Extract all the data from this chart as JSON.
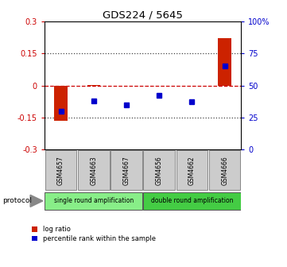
{
  "title": "GDS224 / 5645",
  "samples": [
    "GSM4657",
    "GSM4663",
    "GSM4667",
    "GSM4656",
    "GSM4662",
    "GSM4666"
  ],
  "log_ratio": [
    -0.165,
    0.003,
    -0.003,
    -0.003,
    -0.003,
    0.22
  ],
  "percentile_rank": [
    30,
    38,
    35,
    42,
    37,
    65
  ],
  "ylim_left": [
    -0.3,
    0.3
  ],
  "ylim_right": [
    0,
    100
  ],
  "yticks_left": [
    -0.3,
    -0.15,
    0,
    0.15,
    0.3
  ],
  "yticks_right": [
    0,
    25,
    50,
    75,
    100
  ],
  "ytick_labels_left": [
    "-0.3",
    "-0.15",
    "0",
    "0.15",
    "0.3"
  ],
  "ytick_labels_right": [
    "0",
    "25",
    "50",
    "75",
    "100%"
  ],
  "hlines": [
    0.15,
    -0.15
  ],
  "hline_zero_color": "#cc0000",
  "hline_dotted_color": "#444444",
  "bar_color": "#cc2200",
  "dot_color": "#0000cc",
  "protocol_groups": [
    {
      "label": "single round amplification",
      "start": 0,
      "end": 3,
      "color": "#88ee88"
    },
    {
      "label": "double round amplification",
      "start": 3,
      "end": 6,
      "color": "#44cc44"
    }
  ],
  "protocol_label": "protocol",
  "legend_items": [
    {
      "label": "log ratio",
      "color": "#cc2200"
    },
    {
      "label": "percentile rank within the sample",
      "color": "#0000cc"
    }
  ],
  "bg_color": "#ffffff",
  "tick_label_color_left": "#cc0000",
  "tick_label_color_right": "#0000cc",
  "sample_box_color": "#cccccc",
  "sample_box_edge": "#888888"
}
